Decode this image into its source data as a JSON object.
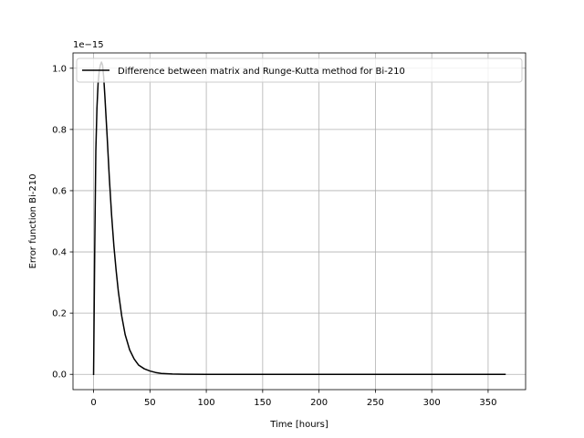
{
  "chart_data": {
    "type": "line",
    "title": "",
    "xlabel": "Time [hours]",
    "ylabel": "Error function Bi-210",
    "y_offset_text": "1e−15",
    "xlim": [
      -18.25,
      383.25
    ],
    "ylim": [
      -0.05,
      1.05
    ],
    "xticks": [
      0,
      50,
      100,
      150,
      200,
      250,
      300,
      350
    ],
    "xtick_labels": [
      "0",
      "50",
      "100",
      "150",
      "200",
      "250",
      "300",
      "350"
    ],
    "yticks": [
      0.0,
      0.2,
      0.4,
      0.6,
      0.8,
      1.0
    ],
    "ytick_labels": [
      "0.0",
      "0.2",
      "0.4",
      "0.6",
      "0.8",
      "1.0"
    ],
    "grid": true,
    "legend_position": "upper right",
    "series": [
      {
        "name": "Difference between matrix and Runge-Kutta method for Bi-210",
        "color": "#000000",
        "x": [
          0,
          1,
          2,
          3,
          4,
          5,
          6,
          7,
          8,
          9,
          10,
          12,
          14,
          16,
          18,
          20,
          22,
          25,
          28,
          32,
          36,
          40,
          45,
          50,
          55,
          60,
          70,
          80,
          100,
          150,
          200,
          250,
          300,
          365
        ],
        "y": [
          0.0,
          0.4,
          0.73,
          0.87,
          0.95,
          0.99,
          1.01,
          1.02,
          1.01,
          0.97,
          0.91,
          0.78,
          0.64,
          0.52,
          0.42,
          0.34,
          0.27,
          0.19,
          0.13,
          0.08,
          0.05,
          0.03,
          0.018,
          0.011,
          0.006,
          0.003,
          0.001,
          0.0003,
          0.0,
          0.0,
          0.0,
          0.0,
          0.0,
          0.0
        ]
      }
    ]
  }
}
